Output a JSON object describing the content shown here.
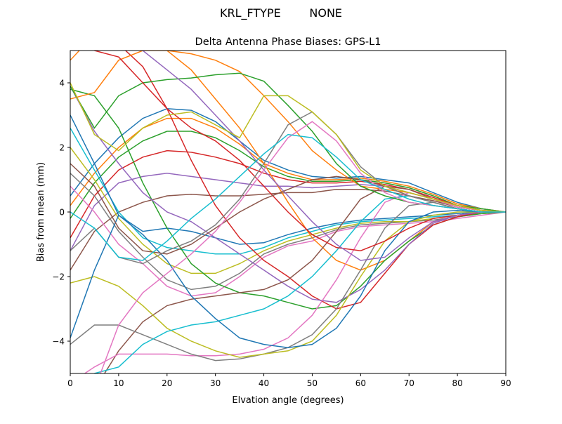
{
  "suptitle": "KRL_FTYPE        NONE",
  "chart_data": {
    "type": "line",
    "title": "Delta Antenna Phase Biases: GPS-L1",
    "xlabel": "Elvation angle (degrees)",
    "ylabel": "Bias from mean (mm)",
    "xlim": [
      0,
      90
    ],
    "ylim": [
      -5,
      5
    ],
    "xticks": [
      0,
      10,
      20,
      30,
      40,
      50,
      60,
      70,
      80,
      90
    ],
    "yticks": [
      -4,
      -2,
      0,
      2,
      4
    ],
    "grid": false,
    "legend": "none",
    "colors": [
      "#1f77b4",
      "#ff7f0e",
      "#2ca02c",
      "#d62728",
      "#9467bd",
      "#8c564b",
      "#e377c2",
      "#7f7f7f",
      "#bcbd22",
      "#17becf"
    ],
    "x": [
      0,
      5,
      10,
      15,
      20,
      25,
      30,
      35,
      40,
      45,
      50,
      55,
      60,
      65,
      70,
      75,
      80,
      85,
      90
    ],
    "series": [
      {
        "values": [
          0.5,
          1.5,
          2.3,
          2.9,
          3.2,
          3.15,
          2.8,
          2.2,
          1.6,
          1.3,
          1.1,
          1.05,
          1.1,
          1.0,
          0.9,
          0.6,
          0.3,
          0.1,
          0
        ]
      },
      {
        "values": [
          0.2,
          1.2,
          2.0,
          2.6,
          2.9,
          2.9,
          2.6,
          2.1,
          1.5,
          1.2,
          1.0,
          1.0,
          1.05,
          0.95,
          0.8,
          0.55,
          0.25,
          0.1,
          0
        ]
      },
      {
        "values": [
          -0.2,
          0.9,
          1.7,
          2.2,
          2.5,
          2.5,
          2.3,
          1.9,
          1.4,
          1.1,
          0.95,
          0.95,
          1.0,
          0.9,
          0.75,
          0.5,
          0.2,
          0.1,
          0
        ]
      },
      {
        "values": [
          -0.8,
          0.5,
          1.3,
          1.7,
          1.9,
          1.85,
          1.7,
          1.5,
          1.2,
          1.0,
          0.9,
          0.9,
          0.95,
          0.85,
          0.7,
          0.45,
          0.2,
          0.05,
          0
        ]
      },
      {
        "values": [
          -1.2,
          0.2,
          0.9,
          1.1,
          1.2,
          1.1,
          1.0,
          0.9,
          0.8,
          0.8,
          0.75,
          0.8,
          0.85,
          0.8,
          0.6,
          0.4,
          0.2,
          0.05,
          0
        ]
      },
      {
        "values": [
          -1.8,
          -0.6,
          0,
          0.3,
          0.5,
          0.55,
          0.5,
          0.5,
          0.55,
          0.6,
          0.6,
          0.7,
          0.7,
          0.65,
          0.5,
          0.35,
          0.15,
          0.05,
          0
        ]
      },
      {
        "values": [
          0.8,
          0,
          -1.0,
          -1.6,
          -2.3,
          -2.6,
          -2.5,
          -2.0,
          -1.4,
          -1.05,
          -0.9,
          -0.6,
          -0.45,
          -0.4,
          -0.35,
          -0.3,
          -0.2,
          -0.1,
          0
        ]
      },
      {
        "values": [
          1.2,
          0.5,
          -0.6,
          -1.4,
          -2.1,
          -2.4,
          -2.3,
          -1.9,
          -1.3,
          -1.0,
          -0.8,
          -0.55,
          -0.4,
          -0.35,
          -0.3,
          -0.25,
          -0.15,
          -0.05,
          0
        ]
      },
      {
        "values": [
          2.0,
          1.0,
          -0.2,
          -1.0,
          -1.6,
          -1.9,
          -1.9,
          -1.6,
          -1.2,
          -0.9,
          -0.7,
          -0.5,
          -0.35,
          -0.3,
          -0.3,
          -0.2,
          -0.1,
          -0.05,
          0
        ]
      },
      {
        "values": [
          2.6,
          1.3,
          0,
          -0.8,
          -1.1,
          -1.2,
          -1.3,
          -1.3,
          -1.1,
          -0.8,
          -0.6,
          -0.4,
          -0.3,
          -0.25,
          -0.2,
          -0.15,
          -0.1,
          0,
          0
        ]
      },
      {
        "values": [
          3.0,
          1.5,
          -0.1,
          -0.6,
          -0.5,
          -0.6,
          -0.8,
          -1.0,
          -0.95,
          -0.7,
          -0.5,
          -0.35,
          -0.25,
          -0.2,
          -0.15,
          -0.1,
          -0.05,
          0,
          0
        ]
      },
      {
        "values": [
          4.7,
          5.5,
          5.8,
          5.5,
          5.0,
          4.4,
          3.5,
          2.6,
          1.5,
          0.3,
          -0.8,
          -1.5,
          -1.8,
          -1.5,
          -0.9,
          -0.3,
          -0.1,
          0,
          0
        ]
      },
      {
        "values": [
          3.8,
          3.6,
          2.6,
          0.9,
          -0.5,
          -1.6,
          -2.2,
          -2.5,
          -2.6,
          -2.8,
          -3.0,
          -2.9,
          -2.3,
          -1.5,
          -0.9,
          -0.4,
          -0.15,
          -0.05,
          0
        ]
      },
      {
        "values": [
          6,
          5.5,
          5.2,
          4.5,
          3.2,
          1.6,
          0.2,
          -0.8,
          -1.5,
          -2.0,
          -2.6,
          -3.0,
          -2.8,
          -1.9,
          -1.0,
          -0.4,
          -0.15,
          0,
          0
        ]
      },
      {
        "values": [
          3.9,
          2.5,
          1.5,
          0.6,
          0,
          -0.3,
          -0.8,
          -1.3,
          -1.8,
          -2.3,
          -2.7,
          -2.8,
          -2.4,
          -1.8,
          -1.0,
          -0.35,
          -0.1,
          0,
          0
        ]
      },
      {
        "values": [
          -6,
          -5.5,
          -4.3,
          -3.4,
          -2.9,
          -2.7,
          -2.6,
          -2.5,
          -2.4,
          -2.1,
          -1.5,
          -0.6,
          0.4,
          0.8,
          0.7,
          0.4,
          0.15,
          0.05,
          0
        ]
      },
      {
        "values": [
          -5.3,
          -4.8,
          -4.4,
          -4.4,
          -4.4,
          -4.45,
          -4.45,
          -4.4,
          -4.25,
          -3.9,
          -3.2,
          -2.1,
          -0.8,
          0.3,
          0.6,
          0.4,
          0.15,
          0.05,
          0
        ]
      },
      {
        "values": [
          -4.1,
          -3.5,
          -3.5,
          -3.8,
          -4.1,
          -4.4,
          -4.6,
          -4.55,
          -4.4,
          -4.2,
          -3.8,
          -3.0,
          -1.8,
          -0.5,
          0.2,
          0.3,
          0.1,
          0,
          0
        ]
      },
      {
        "values": [
          -2.2,
          -2.0,
          -2.3,
          -2.9,
          -3.6,
          -4.0,
          -4.3,
          -4.5,
          -4.4,
          -4.3,
          -4.0,
          -3.2,
          -2.0,
          -0.9,
          -0.3,
          -0.1,
          0,
          0,
          0
        ]
      },
      {
        "values": [
          -5.5,
          -5.0,
          -4.8,
          -4.1,
          -3.7,
          -3.5,
          -3.4,
          -3.2,
          -3.0,
          -2.6,
          -2.0,
          -1.2,
          -0.3,
          0.4,
          0.5,
          0.3,
          0.1,
          0,
          0
        ]
      },
      {
        "values": [
          -3.9,
          -1.8,
          -0.1,
          -0.7,
          -1.5,
          -2.6,
          -3.3,
          -3.9,
          -4.1,
          -4.2,
          -4.1,
          -3.6,
          -2.6,
          -1.2,
          -0.3,
          0,
          0.05,
          0,
          0
        ]
      },
      {
        "values": [
          3.5,
          3.7,
          4.7,
          5.0,
          5.0,
          4.9,
          4.7,
          4.35,
          3.6,
          2.8,
          1.9,
          1.3,
          0.8,
          0.7,
          0.6,
          0.4,
          0.2,
          0.05,
          0
        ]
      },
      {
        "values": [
          3.9,
          2.6,
          3.6,
          4.0,
          4.1,
          4.15,
          4.25,
          4.3,
          4.05,
          3.3,
          2.5,
          1.5,
          0.8,
          0.5,
          0.3,
          0.2,
          0.1,
          0,
          0
        ]
      },
      {
        "values": [
          7,
          5,
          4.8,
          4.0,
          3.2,
          2.6,
          2.2,
          1.6,
          0.8,
          0.0,
          -0.7,
          -1.1,
          -1.2,
          -0.9,
          -0.5,
          -0.2,
          -0.1,
          0,
          0
        ]
      },
      {
        "values": [
          6,
          5.3,
          5.1,
          5.0,
          4.4,
          3.8,
          3.0,
          2.2,
          1.3,
          0.5,
          -0.3,
          -1.0,
          -1.5,
          -1.4,
          -0.8,
          -0.3,
          -0.1,
          0,
          0
        ]
      },
      {
        "values": [
          1.5,
          0.8,
          -0.5,
          -1.2,
          -1.3,
          -1.0,
          -0.5,
          0,
          0.4,
          0.7,
          1.0,
          1.1,
          1.0,
          0.8,
          0.5,
          0.3,
          0.1,
          0,
          0
        ]
      },
      {
        "values": [
          -6,
          -5.5,
          -3.5,
          -2.5,
          -1.9,
          -1.3,
          -0.6,
          0.3,
          1.3,
          2.3,
          2.8,
          2.2,
          1.2,
          0.6,
          0.3,
          0.2,
          0.1,
          0,
          0
        ]
      },
      {
        "values": [
          -1.2,
          -0.5,
          -1.4,
          -1.6,
          -1.2,
          -0.9,
          -0.4,
          0.4,
          1.5,
          2.7,
          3.1,
          2.4,
          1.4,
          0.8,
          0.5,
          0.3,
          0.1,
          0,
          0
        ]
      },
      {
        "values": [
          4.0,
          2.4,
          1.9,
          2.6,
          3.0,
          3.1,
          2.7,
          2.3,
          3.6,
          3.6,
          3.1,
          2.4,
          1.3,
          0.8,
          0.6,
          0.4,
          0.2,
          0.05,
          0
        ]
      },
      {
        "values": [
          0,
          -0.5,
          -1.4,
          -1.5,
          -0.9,
          -0.2,
          0.4,
          1.1,
          1.8,
          2.4,
          2.3,
          1.7,
          1.0,
          0.7,
          0.4,
          0.2,
          0.1,
          0,
          0
        ]
      }
    ]
  }
}
